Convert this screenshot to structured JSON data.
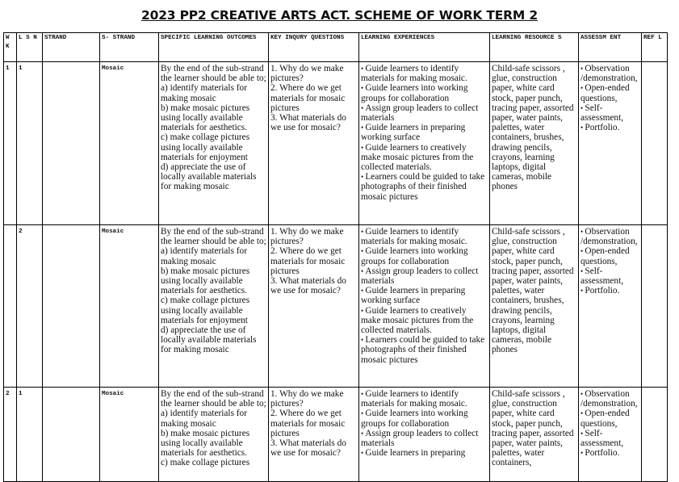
{
  "title": "2023 PP2 CREATIVE ARTS ACT. SCHEME OF WORK TERM 2",
  "headers": [
    "W K",
    "L S N",
    "STRAND",
    "S- STRAND",
    "SPECIFIC LEARNING OUTCOMES",
    "KEY INQURY QUESTIONS",
    "LEARNING EXPERIENCES",
    "LEARNING RESOURCE S",
    "ASSESSM ENT",
    "REF L"
  ],
  "rows": [
    {
      "wk": "1",
      "lsn": "1",
      "strand": "",
      "sub_strand": "Mosaic",
      "outcomes": [
        "By the end of the sub-strand the learner should be able to;",
        "a) identify materials for making mosaic",
        "b) make mosaic pictures using locally available materials for aesthetics.",
        "c) make collage pictures using locally available materials for enjoyment",
        "d) appreciate the use of locally available materials for making mosaic"
      ],
      "questions": [
        "1. Why do we make pictures?",
        "2. Where do we get materials for mosaic pictures",
        "3. What materials do we use for mosaic?"
      ],
      "experiences": [
        "Guide learners to identify materials for making mosaic.",
        "Guide learners into working groups for collaboration",
        "Assign group leaders to collect materials",
        "Guide learners in preparing working surface",
        "Guide learners to creatively make mosaic pictures from the collected materials.",
        "Learners could be guided to take photographs of their finished mosaic pictures"
      ],
      "resources": "Child-safe scissors , glue, construction paper, white card stock, paper punch, tracing paper, assorted paper, water paints, palettes, water containers, brushes, drawing pencils, crayons, learning laptops, digital cameras, mobile phones",
      "assessment": [
        "Observation /demonstration,",
        "Open-ended questions,",
        "Self-assessment,",
        "Portfolio."
      ],
      "reflection": ""
    },
    {
      "wk": "",
      "lsn": "2",
      "strand": "",
      "sub_strand": "Mosaic",
      "outcomes": [
        "By the end of the sub-strand the learner should be able to;",
        "a) identify materials for making mosaic",
        "b) make mosaic pictures using locally available materials for aesthetics.",
        "c) make collage pictures using locally available materials for enjoyment",
        "d) appreciate the use of locally available materials for making mosaic"
      ],
      "questions": [
        "1. Why do we make pictures?",
        "2. Where do we get materials for mosaic pictures",
        "3. What materials do we use for mosaic?"
      ],
      "experiences": [
        "Guide learners to identify materials for making mosaic.",
        "Guide learners into working groups for collaboration",
        "Assign group leaders to collect materials",
        "Guide learners in preparing working surface",
        "Guide learners to creatively make mosaic pictures from the collected materials.",
        "Learners could be guided to take photographs of their finished mosaic pictures"
      ],
      "resources": "Child-safe scissors , glue, construction paper, white card stock, paper punch, tracing paper, assorted paper, water paints, palettes, water containers, brushes, drawing pencils, crayons, learning laptops, digital cameras, mobile phones",
      "assessment": [
        "Observation /demonstration,",
        "Open-ended questions,",
        "Self-assessment,",
        "Portfolio."
      ],
      "reflection": ""
    },
    {
      "wk": "2",
      "lsn": "1",
      "strand": "",
      "sub_strand": "Mosaic",
      "outcomes": [
        "By the end of the sub-strand the learner should be able to;",
        "a) identify materials for making mosaic",
        "b) make mosaic pictures using locally available materials for aesthetics.",
        "c) make collage pictures"
      ],
      "questions": [
        "1. Why do we make pictures?",
        "2. Where do we get materials for mosaic pictures",
        "3. What materials do we use for mosaic?"
      ],
      "experiences": [
        "Guide learners to identify materials for making mosaic.",
        "Guide learners into working groups for collaboration",
        "Assign group leaders to collect materials",
        "Guide learners in preparing"
      ],
      "resources": "Child-safe scissors , glue, construction paper, white card stock, paper punch, tracing paper, assorted paper, water paints, palettes, water containers,",
      "assessment": [
        "Observation /demonstration,",
        "Open-ended questions,",
        "Self-assessment,",
        "Portfolio."
      ],
      "reflection": ""
    }
  ]
}
